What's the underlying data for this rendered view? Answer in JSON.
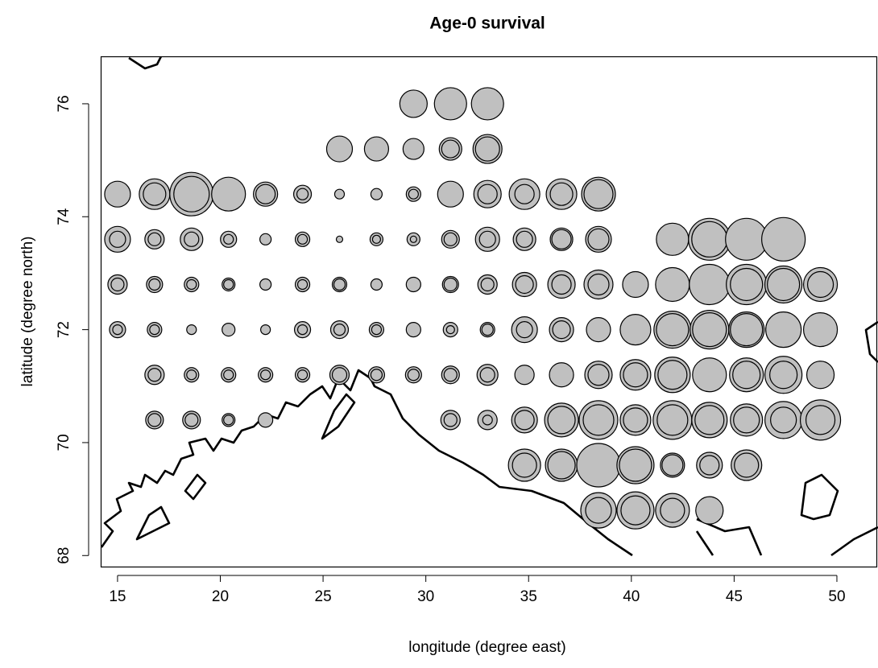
{
  "chart_data": {
    "type": "scatter",
    "title": "Age-0 survival",
    "x_label": "longitude (degree east)",
    "y_label": "latitude (degree north)",
    "xlim": [
      14.18,
      52.0
    ],
    "ylim": [
      67.79,
      76.84
    ],
    "xticks": [
      15,
      20,
      25,
      30,
      35,
      40,
      45,
      50
    ],
    "yticks": [
      68,
      70,
      72,
      74,
      76
    ],
    "color": "#c0c0c0",
    "x": [
      29.4,
      31.2,
      33,
      25.8,
      27.6,
      29.4,
      31.2,
      33,
      15,
      16.8,
      18.6,
      20.4,
      22.2,
      24,
      25.8,
      27.6,
      29.4,
      31.2,
      33,
      34.8,
      36.6,
      38.4,
      15,
      16.8,
      18.6,
      20.4,
      22.2,
      24,
      25.8,
      27.6,
      29.4,
      31.2,
      33,
      34.8,
      36.6,
      38.4,
      42,
      43.8,
      45.6,
      47.4,
      15,
      16.8,
      18.6,
      20.4,
      22.2,
      24,
      25.8,
      27.6,
      29.4,
      31.2,
      33,
      34.8,
      36.6,
      38.4,
      40.2,
      42,
      43.8,
      45.6,
      47.4,
      49.2,
      15,
      16.8,
      18.6,
      20.4,
      22.2,
      24,
      25.8,
      27.6,
      29.4,
      31.2,
      33,
      34.8,
      36.6,
      38.4,
      40.2,
      42,
      43.8,
      45.6,
      47.4,
      49.2,
      16.8,
      18.6,
      20.4,
      22.2,
      24,
      25.8,
      27.6,
      29.4,
      31.2,
      33,
      34.8,
      36.6,
      38.4,
      40.2,
      42,
      43.8,
      45.6,
      47.4,
      49.2,
      16.8,
      18.6,
      20.4,
      22.2,
      31.2,
      33,
      34.8,
      36.6,
      38.4,
      40.2,
      42,
      43.8,
      45.6,
      47.4,
      49.2,
      34.8,
      36.6,
      38.4,
      40.2,
      42,
      43.8,
      45.6,
      38.4,
      40.2,
      42,
      43.8
    ],
    "y": [
      76,
      76,
      76,
      75.2,
      75.2,
      75.2,
      75.2,
      75.2,
      74.4,
      74.4,
      74.4,
      74.4,
      74.4,
      74.4,
      74.4,
      74.4,
      74.4,
      74.4,
      74.4,
      74.4,
      74.4,
      74.4,
      73.6,
      73.6,
      73.6,
      73.6,
      73.6,
      73.6,
      73.6,
      73.6,
      73.6,
      73.6,
      73.6,
      73.6,
      73.6,
      73.6,
      73.6,
      73.6,
      73.6,
      73.6,
      72.8,
      72.8,
      72.8,
      72.8,
      72.8,
      72.8,
      72.8,
      72.8,
      72.8,
      72.8,
      72.8,
      72.8,
      72.8,
      72.8,
      72.8,
      72.8,
      72.8,
      72.8,
      72.8,
      72.8,
      72,
      72,
      72,
      72,
      72,
      72,
      72,
      72,
      72,
      72,
      72,
      72,
      72,
      72,
      72,
      72,
      72,
      72,
      72,
      72,
      71.2,
      71.2,
      71.2,
      71.2,
      71.2,
      71.2,
      71.2,
      71.2,
      71.2,
      71.2,
      71.2,
      71.2,
      71.2,
      71.2,
      71.2,
      71.2,
      71.2,
      71.2,
      71.2,
      70.4,
      70.4,
      70.4,
      70.4,
      70.4,
      70.4,
      70.4,
      70.4,
      70.4,
      70.4,
      70.4,
      70.4,
      70.4,
      70.4,
      70.4,
      69.6,
      69.6,
      69.6,
      69.6,
      69.6,
      69.6,
      69.6,
      68.8,
      68.8,
      68.8,
      68.8
    ],
    "size": [
      17,
      20,
      20,
      16,
      15,
      13,
      14,
      18,
      16,
      19,
      27,
      21,
      15,
      11,
      6,
      7,
      9,
      16,
      17,
      19,
      19,
      21,
      16,
      12,
      14,
      10,
      7,
      9,
      4,
      8,
      8,
      11,
      15,
      14,
      14,
      16,
      20,
      26,
      26,
      27,
      12,
      10,
      9,
      8,
      7,
      9,
      9,
      7,
      9,
      10,
      12,
      15,
      17,
      18,
      16,
      21,
      25,
      25,
      23,
      21,
      10,
      9,
      6,
      8,
      6,
      10,
      11,
      9,
      9,
      9,
      9,
      16,
      15,
      15,
      19,
      23,
      24,
      22,
      22,
      21,
      12,
      9,
      9,
      9,
      9,
      12,
      10,
      10,
      11,
      13,
      12,
      15,
      17,
      19,
      22,
      21,
      21,
      23,
      17,
      11,
      11,
      8,
      9,
      12,
      12,
      16,
      21,
      24,
      19,
      24,
      22,
      20,
      23,
      25,
      20,
      20,
      27,
      23,
      15,
      16,
      19,
      22,
      23,
      21,
      17
    ],
    "inner": [
      null,
      null,
      null,
      null,
      null,
      null,
      11,
      15,
      null,
      14,
      22,
      null,
      12,
      7,
      null,
      null,
      6,
      null,
      12,
      12,
      14,
      18,
      10,
      8,
      9,
      6,
      null,
      6,
      null,
      5,
      4,
      8,
      10,
      10,
      12,
      13,
      null,
      22,
      null,
      null,
      8,
      7,
      6,
      6,
      null,
      6,
      7,
      null,
      null,
      8,
      8,
      11,
      12,
      13,
      null,
      null,
      null,
      20,
      20,
      16,
      6,
      6,
      null,
      null,
      null,
      6,
      7,
      6,
      null,
      5,
      7,
      10,
      11,
      null,
      null,
      20,
      21,
      20,
      null,
      null,
      8,
      6,
      6,
      6,
      6,
      9,
      7,
      7,
      8,
      9,
      null,
      null,
      13,
      15,
      18,
      null,
      17,
      17,
      null,
      8,
      8,
      6,
      null,
      8,
      6,
      12,
      17,
      19,
      15,
      19,
      18,
      16,
      16,
      18,
      15,
      17,
      null,
      20,
      13,
      12,
      15,
      16,
      18,
      15,
      null
    ]
  }
}
